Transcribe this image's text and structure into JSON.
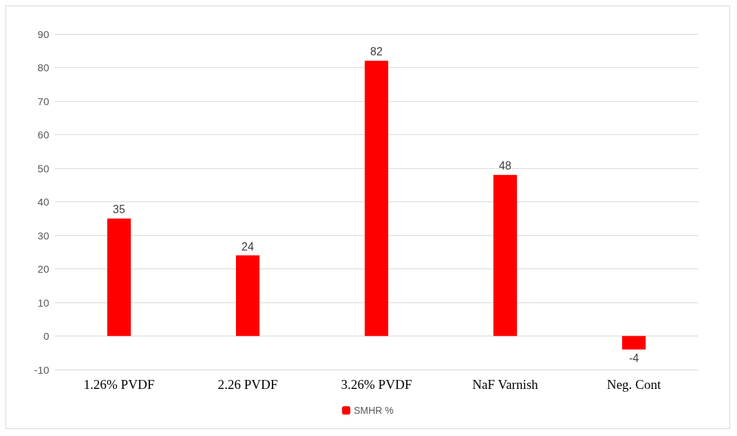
{
  "chart_data": {
    "type": "bar",
    "categories": [
      "1.26% PVDF",
      "2.26 PVDF",
      "3.26% PVDF",
      "NaF Varnish",
      "Neg. Cont"
    ],
    "series": [
      {
        "name": "SMHR %",
        "color": "#ff0000",
        "values": [
          35,
          24,
          82,
          48,
          -4
        ]
      }
    ],
    "ylim": [
      -10,
      90
    ],
    "yticks": [
      -10,
      0,
      10,
      20,
      30,
      40,
      50,
      60,
      70,
      80,
      90
    ],
    "grid": "y",
    "legend": "bottom",
    "data_labels": true
  }
}
